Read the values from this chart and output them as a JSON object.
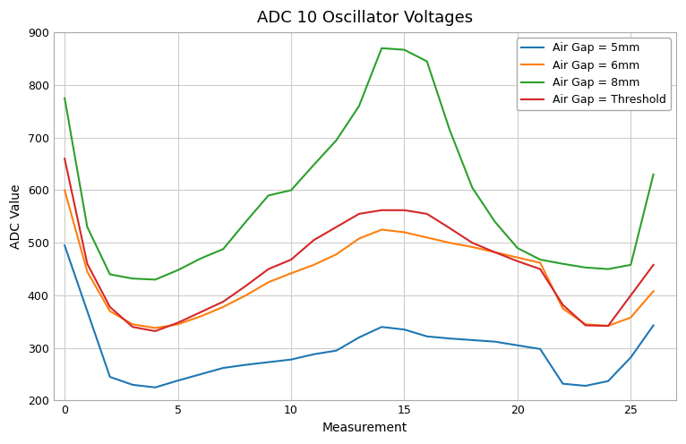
{
  "title": "ADC 10 Oscillator Voltages",
  "xlabel": "Measurement",
  "ylabel": "ADC Value",
  "ylim": [
    200,
    900
  ],
  "xlim": [
    -0.5,
    27
  ],
  "yticks": [
    200,
    300,
    400,
    500,
    600,
    700,
    800,
    900
  ],
  "xticks": [
    0,
    5,
    10,
    15,
    20,
    25
  ],
  "series": {
    "5mm": {
      "label": "Air Gap = 5mm",
      "color": "#1f77b4",
      "x": [
        0,
        1,
        2,
        3,
        4,
        5,
        6,
        7,
        8,
        9,
        10,
        11,
        12,
        13,
        14,
        15,
        16,
        17,
        18,
        19,
        20,
        21,
        22,
        23,
        24,
        25,
        26
      ],
      "y": [
        495,
        370,
        245,
        230,
        225,
        238,
        250,
        262,
        268,
        273,
        278,
        288,
        295,
        320,
        340,
        335,
        322,
        318,
        315,
        312,
        305,
        298,
        232,
        228,
        237,
        282,
        343
      ]
    },
    "6mm": {
      "label": "Air Gap = 6mm",
      "color": "#ff7f0e",
      "x": [
        0,
        1,
        2,
        3,
        4,
        5,
        6,
        7,
        8,
        9,
        10,
        11,
        12,
        13,
        14,
        15,
        16,
        17,
        18,
        19,
        20,
        21,
        22,
        23,
        24,
        25,
        26
      ],
      "y": [
        600,
        445,
        370,
        345,
        338,
        345,
        360,
        378,
        400,
        425,
        442,
        458,
        478,
        508,
        525,
        520,
        510,
        500,
        492,
        482,
        472,
        462,
        375,
        345,
        342,
        358,
        408
      ]
    },
    "8mm": {
      "label": "Air Gap = 8mm",
      "color": "#2ca02c",
      "x": [
        0,
        1,
        2,
        3,
        4,
        5,
        6,
        7,
        8,
        9,
        10,
        11,
        12,
        13,
        14,
        15,
        16,
        17,
        18,
        19,
        20,
        21,
        22,
        23,
        24,
        25,
        26
      ],
      "y": [
        775,
        530,
        440,
        432,
        430,
        448,
        470,
        488,
        540,
        590,
        600,
        648,
        695,
        760,
        870,
        867,
        845,
        715,
        605,
        540,
        490,
        468,
        460,
        453,
        450,
        458,
        630
      ]
    },
    "threshold": {
      "label": "Air Gap = Threshold",
      "color": "#d62728",
      "x": [
        0,
        1,
        2,
        3,
        4,
        5,
        6,
        7,
        8,
        9,
        10,
        11,
        12,
        13,
        14,
        15,
        16,
        17,
        18,
        19,
        20,
        21,
        22,
        23,
        24,
        25,
        26
      ],
      "y": [
        660,
        460,
        378,
        340,
        332,
        348,
        368,
        388,
        418,
        450,
        468,
        505,
        530,
        555,
        562,
        562,
        555,
        528,
        500,
        482,
        465,
        450,
        382,
        343,
        342,
        400,
        458
      ]
    }
  },
  "background_color": "#ffffff",
  "grid_color": "#cccccc",
  "title_fontsize": 13,
  "linewidth": 1.5
}
